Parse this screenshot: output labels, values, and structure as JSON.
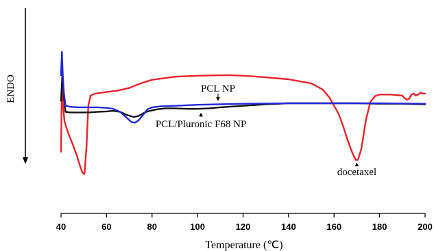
{
  "chart_data": {
    "type": "line",
    "xlabel": "Temperature (℃)",
    "ylabel": "ENDO",
    "xlim": [
      40,
      200
    ],
    "ylim": [
      0,
      100
    ],
    "xticks": [
      40,
      60,
      80,
      100,
      120,
      140,
      160,
      180,
      200
    ],
    "grid": false,
    "series": [
      {
        "color": "#e8232a",
        "x": [
          40,
          40.4,
          40.8,
          41.5,
          43,
          45,
          47,
          48.5,
          49.5,
          50.3,
          51.2,
          52,
          53,
          55,
          60,
          65,
          70,
          75,
          80,
          90,
          100,
          110,
          115,
          120,
          130,
          140,
          150,
          155,
          158,
          160,
          162,
          164,
          166,
          168,
          169.5,
          170.5,
          172,
          174,
          176,
          178,
          180,
          185,
          190,
          191,
          192,
          193,
          194,
          195,
          196,
          197,
          198,
          199,
          200
        ],
        "y": [
          25,
          92,
          72,
          55,
          44,
          33,
          21,
          10,
          4,
          3,
          30,
          70,
          80,
          82,
          83.5,
          85,
          87.5,
          92,
          95.5,
          98.5,
          99.5,
          100,
          100,
          99.5,
          98,
          96,
          92,
          86,
          78,
          70,
          62,
          50,
          36,
          24,
          17,
          17,
          28,
          56,
          74,
          79.5,
          81,
          81,
          80,
          77.5,
          76,
          77,
          81,
          82,
          80,
          81,
          83,
          82,
          82
        ]
      },
      {
        "color": "#111111",
        "x": [
          40,
          40.6,
          41.2,
          42,
          44,
          48,
          52,
          56,
          60,
          63,
          66,
          69,
          72,
          74,
          76,
          78,
          82,
          86,
          90,
          96,
          100,
          105,
          110,
          120,
          130,
          140,
          150,
          160,
          170,
          180,
          190,
          200
        ],
        "y": [
          75,
          101,
          80,
          64,
          63.5,
          63.5,
          63.5,
          64,
          64.5,
          65,
          64,
          61,
          59,
          60,
          62.5,
          64.5,
          66.5,
          67.5,
          67.5,
          67,
          67,
          67.5,
          68.5,
          70,
          71.5,
          72.5,
          72.5,
          72.5,
          72.5,
          72,
          72,
          71.5
        ]
      },
      {
        "color": "#2329d6",
        "x": [
          40,
          40.4,
          40.8,
          41.3,
          42,
          44,
          48,
          52,
          56,
          60,
          63,
          66,
          69,
          71,
          72.5,
          74,
          76,
          78,
          80,
          84,
          90,
          100,
          110,
          120,
          140,
          160,
          180,
          200
        ],
        "y": [
          100,
          123,
          98,
          82,
          70,
          69,
          68.5,
          68.5,
          68.5,
          68,
          67,
          64,
          58,
          54,
          53.5,
          55.5,
          61,
          66.5,
          68.5,
          69.5,
          70,
          71,
          71.5,
          72,
          72.5,
          72.5,
          72.5,
          72
        ]
      }
    ],
    "annotations": [
      {
        "text": "PCL NP",
        "x": 109,
        "y": 84,
        "arrow_to_y": 75
      },
      {
        "text": "PCL/Pluronic F68 NP",
        "x": 101.5,
        "y": 49,
        "arrow_to_y": 63
      },
      {
        "text": "docetaxel",
        "x": 170,
        "y": 2,
        "arrow_to_y": 14
      }
    ]
  }
}
